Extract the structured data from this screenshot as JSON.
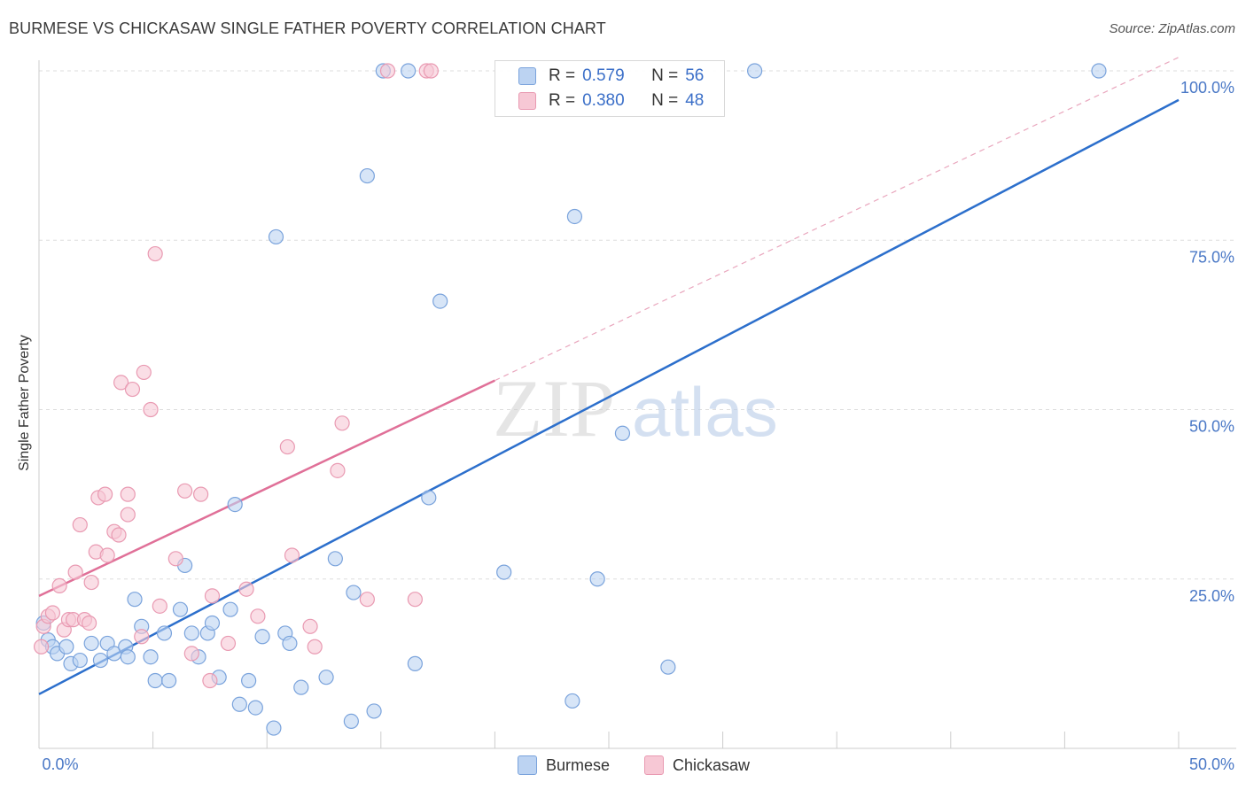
{
  "title": "BURMESE VS CHICKASAW SINGLE FATHER POVERTY CORRELATION CHART",
  "source": "Source: ZipAtlas.com",
  "watermark": {
    "zip": "ZIP",
    "atlas": "atlas"
  },
  "colors": {
    "burmese_fill": "#bcd3f2",
    "burmese_stroke": "#7aa3dc",
    "burmese_line": "#2c6fcc",
    "chickasaw_fill": "#f7c8d5",
    "chickasaw_stroke": "#e99ab2",
    "chickasaw_line": "#e07098",
    "grid": "#dddddd",
    "tick_text": "#4a78c6"
  },
  "legend": {
    "rows": [
      {
        "r_label": "R =",
        "r_value": "0.579",
        "n_label": "N =",
        "n_value": "56"
      },
      {
        "r_label": "R =",
        "r_value": "0.380",
        "n_label": "N =",
        "n_value": "48"
      }
    ],
    "bottom": [
      "Burmese",
      "Chickasaw"
    ]
  },
  "chart_data": {
    "type": "scatter",
    "title": "BURMESE VS CHICKASAW SINGLE FATHER POVERTY CORRELATION CHART",
    "xlabel": "",
    "ylabel": "Single Father Poverty",
    "xlim": [
      0,
      50
    ],
    "ylim": [
      0,
      100
    ],
    "x_tick_labels": [
      "0.0%",
      "50.0%"
    ],
    "y_tick_labels": [
      "25.0%",
      "50.0%",
      "75.0%",
      "100.0%"
    ],
    "y_tick_values": [
      25,
      50,
      75,
      100
    ],
    "series": [
      {
        "name": "Burmese",
        "r": 0.579,
        "n": 56,
        "trend": {
          "x0": 0,
          "y0": 8,
          "x1": 50,
          "y1": 95.7
        },
        "points": [
          [
            0.2,
            18.5
          ],
          [
            0.4,
            16
          ],
          [
            0.6,
            15
          ],
          [
            0.8,
            14
          ],
          [
            1.2,
            15
          ],
          [
            1.4,
            12.5
          ],
          [
            1.8,
            13
          ],
          [
            2.3,
            15.5
          ],
          [
            2.7,
            13
          ],
          [
            3,
            15.5
          ],
          [
            3.3,
            14
          ],
          [
            3.8,
            15
          ],
          [
            3.9,
            13.5
          ],
          [
            4.2,
            22
          ],
          [
            4.5,
            18
          ],
          [
            4.9,
            13.5
          ],
          [
            5.1,
            10
          ],
          [
            5.5,
            17
          ],
          [
            5.7,
            10
          ],
          [
            6.2,
            20.5
          ],
          [
            6.4,
            27
          ],
          [
            6.7,
            17
          ],
          [
            7,
            13.5
          ],
          [
            7.4,
            17
          ],
          [
            7.6,
            18.5
          ],
          [
            7.9,
            10.5
          ],
          [
            8.4,
            20.5
          ],
          [
            8.6,
            36
          ],
          [
            8.8,
            6.5
          ],
          [
            9.2,
            10
          ],
          [
            9.5,
            6
          ],
          [
            9.8,
            16.5
          ],
          [
            10.3,
            3
          ],
          [
            10.4,
            75.5
          ],
          [
            10.8,
            17
          ],
          [
            11,
            15.5
          ],
          [
            11.5,
            9
          ],
          [
            12.6,
            10.5
          ],
          [
            13,
            28
          ],
          [
            13.7,
            4
          ],
          [
            13.8,
            23
          ],
          [
            14.4,
            84.5
          ],
          [
            14.7,
            5.5
          ],
          [
            15.1,
            100
          ],
          [
            16.2,
            100
          ],
          [
            16.5,
            12.5
          ],
          [
            17.1,
            37
          ],
          [
            17.6,
            66
          ],
          [
            20.4,
            26
          ],
          [
            23.4,
            7
          ],
          [
            23.5,
            78.5
          ],
          [
            24.5,
            25
          ],
          [
            25.6,
            46.5
          ],
          [
            27.6,
            12
          ],
          [
            31.4,
            100
          ],
          [
            46.5,
            100
          ]
        ]
      },
      {
        "name": "Chickasaw",
        "r": 0.38,
        "n": 48,
        "trend": {
          "x0": 0,
          "y0": 22.5,
          "x1": 20,
          "y1": 54.3
        },
        "trend_extended": {
          "x0": 20,
          "y0": 54.3,
          "x1": 50,
          "y1": 102
        },
        "points": [
          [
            0.1,
            15
          ],
          [
            0.2,
            18
          ],
          [
            0.4,
            19.5
          ],
          [
            0.6,
            20
          ],
          [
            0.9,
            24
          ],
          [
            1.1,
            17.5
          ],
          [
            1.3,
            19
          ],
          [
            1.5,
            19
          ],
          [
            1.6,
            26
          ],
          [
            1.8,
            33
          ],
          [
            2,
            19
          ],
          [
            2.2,
            18.5
          ],
          [
            2.3,
            24.5
          ],
          [
            2.5,
            29
          ],
          [
            2.6,
            37
          ],
          [
            2.9,
            37.5
          ],
          [
            3,
            28.5
          ],
          [
            3.3,
            32
          ],
          [
            3.5,
            31.5
          ],
          [
            3.6,
            54
          ],
          [
            3.9,
            37.5
          ],
          [
            3.9,
            34.5
          ],
          [
            4.1,
            53
          ],
          [
            4.5,
            16.5
          ],
          [
            4.6,
            55.5
          ],
          [
            4.9,
            50
          ],
          [
            5.1,
            73
          ],
          [
            5.3,
            21
          ],
          [
            6,
            28
          ],
          [
            6.4,
            38
          ],
          [
            6.7,
            14
          ],
          [
            7.1,
            37.5
          ],
          [
            7.5,
            10
          ],
          [
            7.6,
            22.5
          ],
          [
            8.3,
            15.5
          ],
          [
            9.1,
            23.5
          ],
          [
            9.6,
            19.5
          ],
          [
            10.9,
            44.5
          ],
          [
            11.1,
            28.5
          ],
          [
            11.9,
            18
          ],
          [
            12.1,
            15
          ],
          [
            13.1,
            41
          ],
          [
            13.3,
            48
          ],
          [
            14.4,
            22
          ],
          [
            15.3,
            100
          ],
          [
            16.5,
            22
          ],
          [
            17,
            100
          ],
          [
            17.2,
            100
          ]
        ]
      }
    ]
  }
}
